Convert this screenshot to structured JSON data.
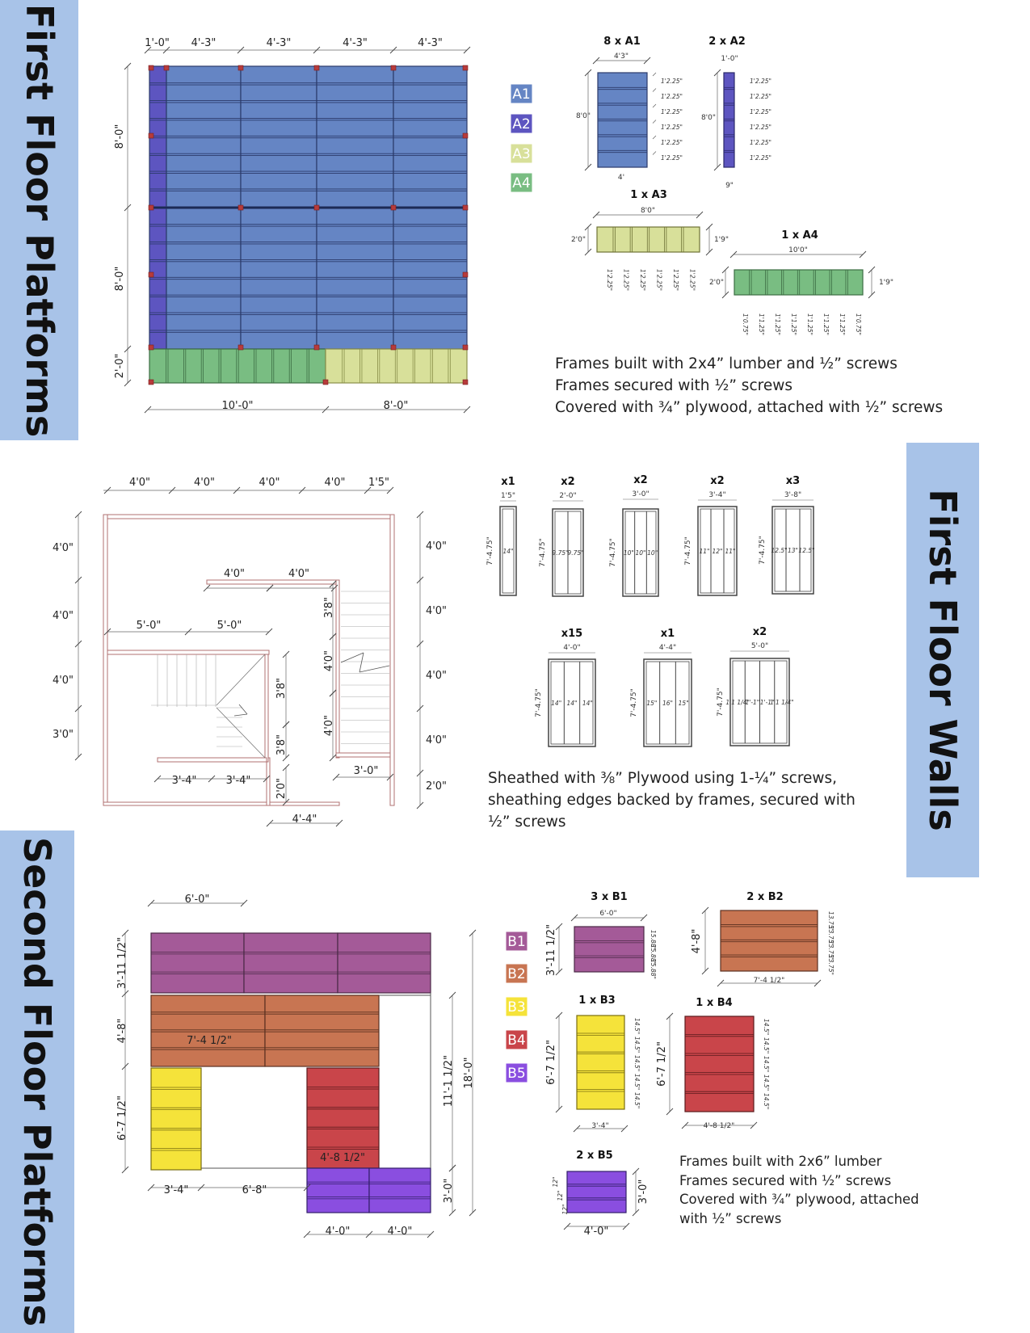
{
  "sections": {
    "first_floor_platforms": "First Floor Platforms",
    "first_floor_walls": "First Floor Walls",
    "second_floor_platforms": "Second Floor Platforms"
  },
  "colors": {
    "A1": "#6585c4",
    "A2": "#5d55c0",
    "A3": "#d8e09a",
    "A4": "#79bd82",
    "B1": "#a45a98",
    "B2": "#c87552",
    "B3": "#f5e33a",
    "B4": "#c9454a",
    "B5": "#8a4ee0",
    "band": "#a8c3e8"
  },
  "platform1": {
    "top_dims": [
      "1'-0\"",
      "4'-3\"",
      "4'-3\"",
      "4'-3\"",
      "4'-3\""
    ],
    "left_dims": [
      "8'-0\"",
      "8'-0\"",
      "2'-0\""
    ],
    "bottom_dims": [
      "10'-0\"",
      "8'-0\""
    ],
    "legend": [
      "A1",
      "A2",
      "A3",
      "A4"
    ],
    "a1": {
      "title": "8 x A1",
      "width": "4'3\"",
      "height": "8'0\"",
      "bottom": "4'",
      "spacing": [
        "1'2.25\"",
        "1'2.25\"",
        "1'2.25\"",
        "1'2.25\"",
        "1'2.25\"",
        "1'2.25\""
      ]
    },
    "a2": {
      "title": "2 x A2",
      "width": "1'-0\"",
      "height": "8'0\"",
      "bottom": "9\"",
      "spacing": [
        "1'2.25\"",
        "1'2.25\"",
        "1'2.25\"",
        "1'2.25\"",
        "1'2.25\"",
        "1'2.25\""
      ]
    },
    "a3": {
      "title": "1 x A3",
      "width": "8'0\"",
      "left": "2'0\"",
      "right": "1'9\"",
      "spacing": [
        "1'2.25\"",
        "1'2.25\"",
        "1'2.25\"",
        "1'2.25\"",
        "1'2.25\"",
        "1'2.25\""
      ]
    },
    "a4": {
      "title": "1 x A4",
      "width": "10'0\"",
      "left": "2'0\"",
      "right": "1'9\"",
      "spacing": [
        "1'0.75\"",
        "1'1.25\"",
        "1'1.25\"",
        "1'1.25\"",
        "1'1.25\"",
        "1'1.25\"",
        "1'1.25\"",
        "1'0.75\""
      ]
    },
    "notes": [
      "Frames built with 2x4” lumber and ½” screws",
      "Frames secured with ½” screws",
      "Covered with ¾” plywood, attached with ½” screws"
    ]
  },
  "walls": {
    "plan": {
      "top": [
        "4'0\"",
        "4'0\"",
        "4'0\"",
        "4'0\"",
        "1'5\""
      ],
      "left": [
        "4'0\"",
        "4'0\"",
        "4'0\"",
        "3'0\""
      ],
      "right": [
        "4'0\"",
        "4'0\"",
        "4'0\"",
        "4'0\"",
        "2'0\""
      ],
      "upper_wall": [
        "4'0\"",
        "4'0\""
      ],
      "mid_wall": [
        "5'-0\"",
        "5'-0\""
      ],
      "lower_wall": [
        "3'-4\"",
        "3'-4\""
      ],
      "stair_v1": "3'8\"",
      "stair_v2": "3'8\"",
      "stair_v3": "3'8\"",
      "stair_v4": "4'0\"",
      "stair_v5": "4'0\"",
      "bottom_small": "2'0\"",
      "bottom_width": "4'-4\"",
      "stair_bottom": "3'-0\""
    },
    "frames": [
      {
        "count": "x1",
        "width": "1'5\"",
        "height": "7'-4.75\"",
        "inner": [
          "14\""
        ]
      },
      {
        "count": "x2",
        "width": "2'-0\"",
        "height": "7'-4.75\"",
        "inner": [
          "9.75\"",
          "9.75\""
        ]
      },
      {
        "count": "x2",
        "width": "3'-0\"",
        "height": "7'-4.75\"",
        "inner": [
          "10\"",
          "10\"",
          "10\""
        ]
      },
      {
        "count": "x2",
        "width": "3'-4\"",
        "height": "7'-4.75\"",
        "inner": [
          "11\"",
          "12\"",
          "11\""
        ]
      },
      {
        "count": "x3",
        "width": "3'-8\"",
        "height": "7'-4.75\"",
        "inner": [
          "12.5\"",
          "13\"",
          "12.5\""
        ]
      },
      {
        "count": "x15",
        "width": "4'-0\"",
        "height": "7'-4.75\"",
        "inner": [
          "14\"",
          "14\"",
          "14\""
        ]
      },
      {
        "count": "x1",
        "width": "4'-4\"",
        "height": "7'-4.75\"",
        "inner": [
          "15\"",
          "16\"",
          "15\""
        ]
      },
      {
        "count": "x2",
        "width": "5'-0\"",
        "height": "7'-4.75\"",
        "inner": [
          "1'1 1/4\"",
          "1'-1\"",
          "1'-1\"",
          "1'1 1/4\""
        ]
      }
    ],
    "notes": [
      "Sheathed with ⅜” Plywood using 1-¼” screws,",
      "sheathing edges backed by frames, secured with",
      "½” screws"
    ]
  },
  "platform2": {
    "top_dim": "6'-0\"",
    "left_dims": [
      "3'-11 1/2\"",
      "4'-8\"",
      "6'-7 1/2\""
    ],
    "right_dims": [
      "11'-1 1/2\"",
      "18'-0\"",
      "3'-0\""
    ],
    "inner_b2": "7'-4 1/2\"",
    "inner_b4": "4'-8 1/2\"",
    "bottom_dims": [
      "3'-4\"",
      "6'-8\"",
      "4'-0\"",
      "4'-0\""
    ],
    "legend": [
      "B1",
      "B2",
      "B3",
      "B4",
      "B5"
    ],
    "b1": {
      "title": "3 x B1",
      "width": "6'-0\"",
      "height": "3'-11 1/2\"",
      "spacing": [
        "15.88\"",
        "15.88\"",
        "15.88\""
      ]
    },
    "b2": {
      "title": "2 x B2",
      "width": "7'-4 1/2\"",
      "height": "4'-8\"",
      "spacing": [
        "13.75\"",
        "13.75\"",
        "13.75\"",
        "13.75\""
      ]
    },
    "b3": {
      "title": "1 x B3",
      "width": "3'-4\"",
      "height": "6'-7 1/2\"",
      "spacing": [
        "14.5\"",
        "14.5\"",
        "14.5\"",
        "14.5\"",
        "14.5\""
      ]
    },
    "b4": {
      "title": "1 x B4",
      "width": "4'-8 1/2\"",
      "height": "6'-7 1/2\"",
      "spacing": [
        "14.5\"",
        "14.5\"",
        "14.5\"",
        "14.5\"",
        "14.5\""
      ]
    },
    "b5": {
      "title": "2 x B5",
      "width": "4'-0\"",
      "height": "3'-0\"",
      "spacing": [
        "12\"",
        "12\"",
        "12\""
      ]
    },
    "notes": [
      "Frames built with 2x6” lumber",
      "Frames secured with ½” screws",
      "Covered with ¾” plywood, attached",
      "with ½” screws"
    ]
  }
}
